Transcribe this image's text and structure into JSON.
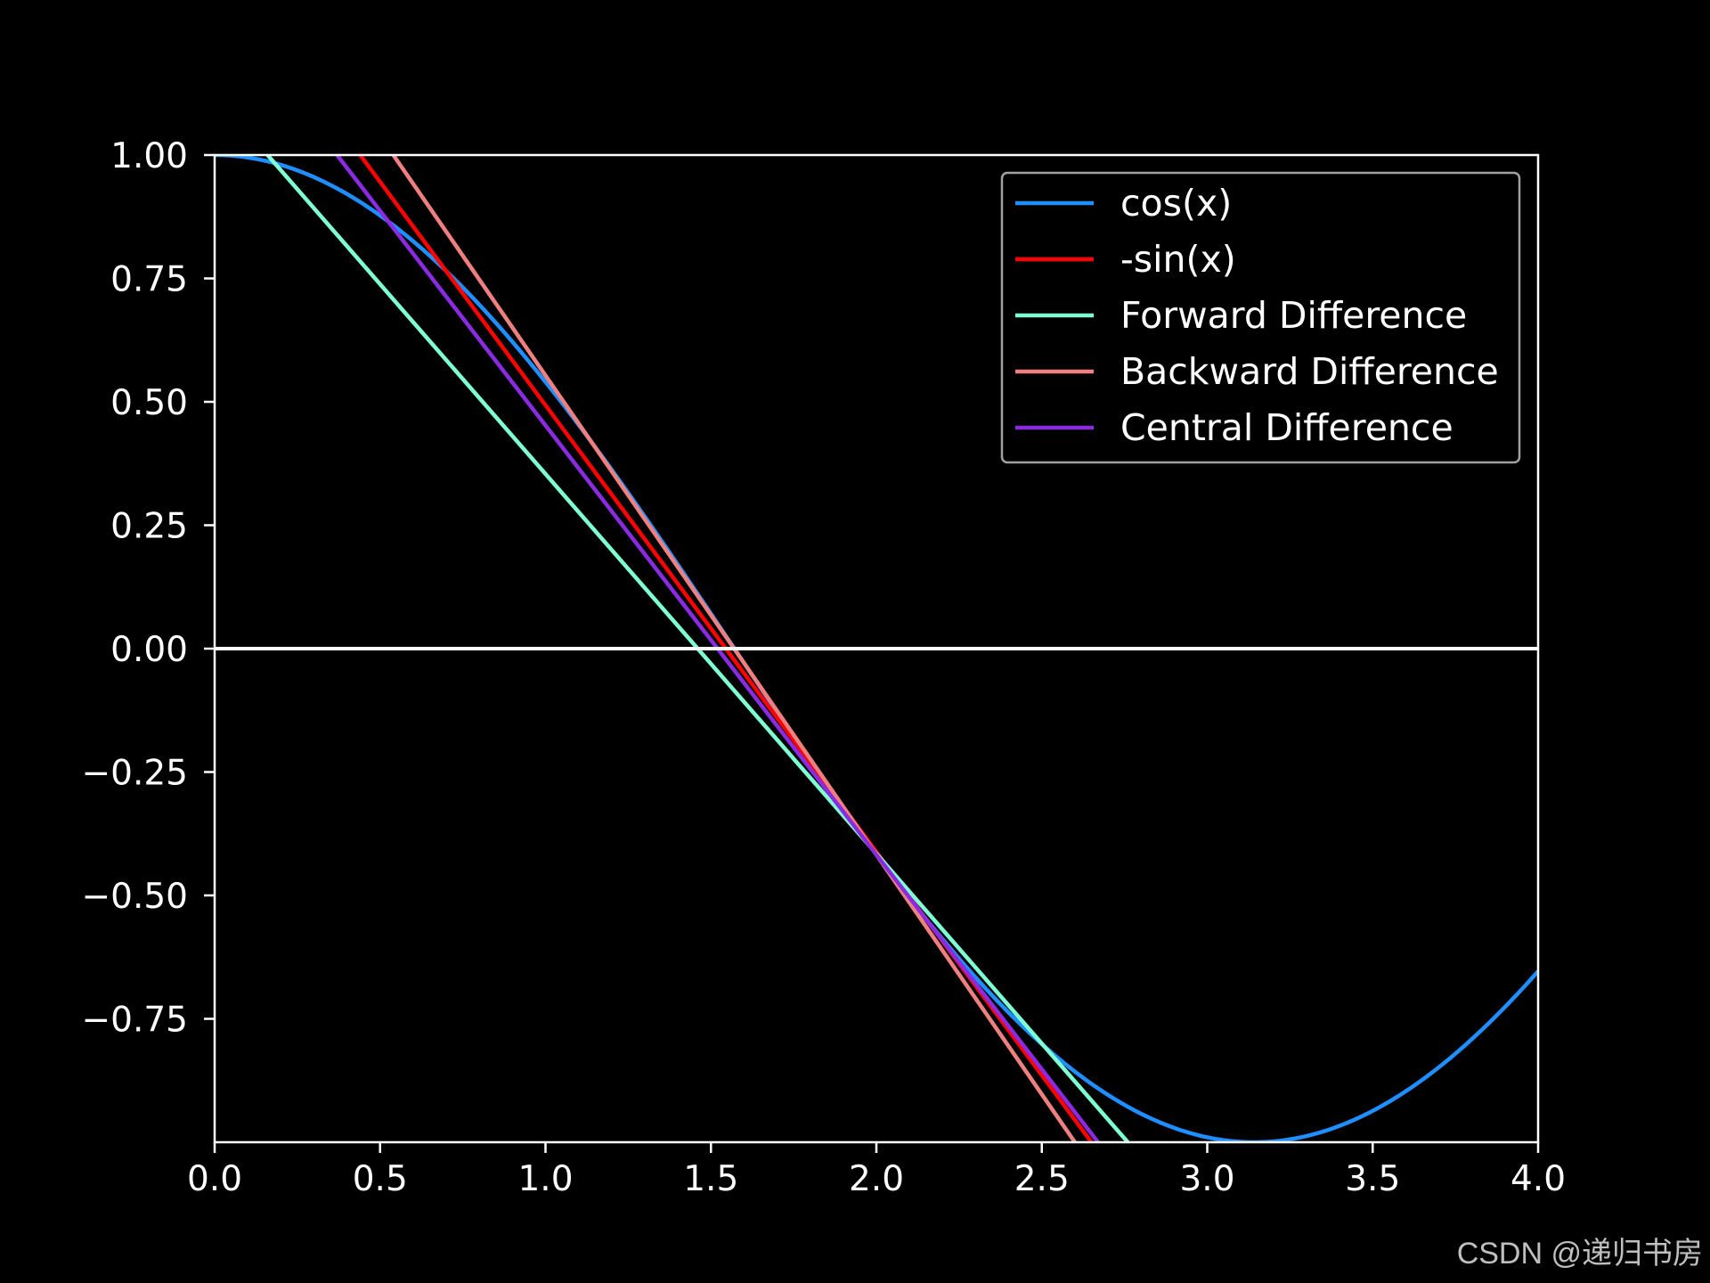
{
  "chart_data": {
    "type": "line",
    "title": "",
    "xlabel": "",
    "ylabel": "",
    "xlim": [
      0.0,
      4.0
    ],
    "ylim": [
      -1.0,
      1.0
    ],
    "x_ticks": [
      0.0,
      0.5,
      1.0,
      1.5,
      2.0,
      2.5,
      3.0,
      3.5,
      4.0
    ],
    "x_tick_labels": [
      "0.0",
      "0.5",
      "1.0",
      "1.5",
      "2.0",
      "2.5",
      "3.0",
      "3.5",
      "4.0"
    ],
    "y_ticks": [
      1.0,
      0.75,
      0.5,
      0.25,
      0.0,
      -0.25,
      -0.5,
      -0.75
    ],
    "y_tick_labels": [
      "1.00",
      "0.75",
      "0.50",
      "0.25",
      "0.00",
      "−0.25",
      "−0.50",
      "−0.75"
    ],
    "grid": false,
    "legend_position": "top-right",
    "hline": {
      "y": 0.0,
      "color": "#ffffff"
    },
    "series": [
      {
        "name": "cos(x)",
        "kind": "function",
        "function": "cos",
        "x_range": [
          0.0,
          4.0
        ],
        "color": "#1f8fff"
      },
      {
        "name": "-sin(x)",
        "kind": "line",
        "x": [
          0.44,
          2.65
        ],
        "y": [
          1.0,
          -1.0
        ],
        "color": "#ff0000"
      },
      {
        "name": "Forward Difference",
        "kind": "line",
        "x": [
          0.16,
          2.76
        ],
        "y": [
          1.0,
          -1.0
        ],
        "color": "#7fffd4"
      },
      {
        "name": "Backward Difference",
        "kind": "line",
        "x": [
          0.54,
          2.6
        ],
        "y": [
          1.0,
          -1.0
        ],
        "color": "#f08080"
      },
      {
        "name": "Central Difference",
        "kind": "line",
        "x": [
          0.37,
          2.67
        ],
        "y": [
          1.0,
          -1.0
        ],
        "color": "#8a2be2"
      }
    ],
    "watermark": "CSDN @递归书房"
  }
}
